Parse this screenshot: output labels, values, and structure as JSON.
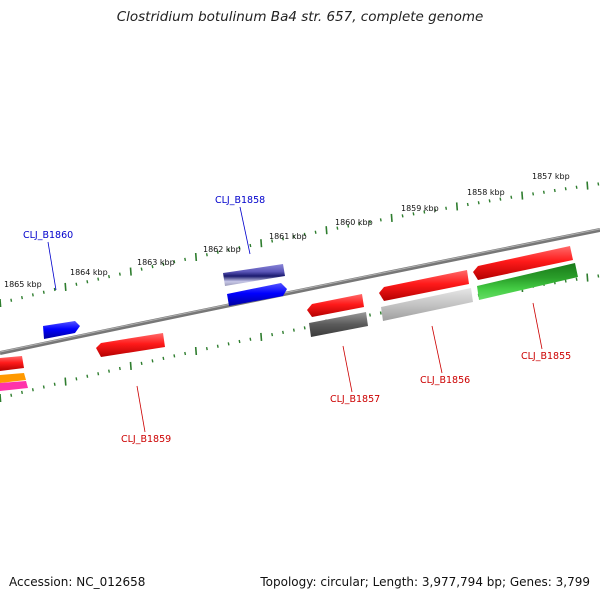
{
  "header": {
    "title": "Clostridium botulinum Ba4 str. 657, complete genome"
  },
  "footer": {
    "accession": "Accession: NC_012658",
    "summary": "Topology: circular; Length: 3,977,794 bp; Genes: 3,799"
  },
  "scale_labels": [
    "1865 kbp",
    "1864 kbp",
    "1863 kbp",
    "1862 kbp",
    "1861 kbp",
    "1860 kbp",
    "1859 kbp",
    "1858 kbp",
    "1857 kbp"
  ],
  "gene_labels": {
    "cl_b1860": "CLJ_B1860",
    "cl_b1858": "CLJ_B1858",
    "cl_b1859": "CLJ_B1859",
    "cl_b1857": "CLJ_B1857",
    "cl_b1856": "CLJ_B1856",
    "cl_b1855": "CLJ_B1855"
  },
  "colors": {
    "forward_label": "#0000cc",
    "reverse_label": "#cc0000",
    "backbone": "#808080",
    "ticks": "#2e7d2e"
  }
}
